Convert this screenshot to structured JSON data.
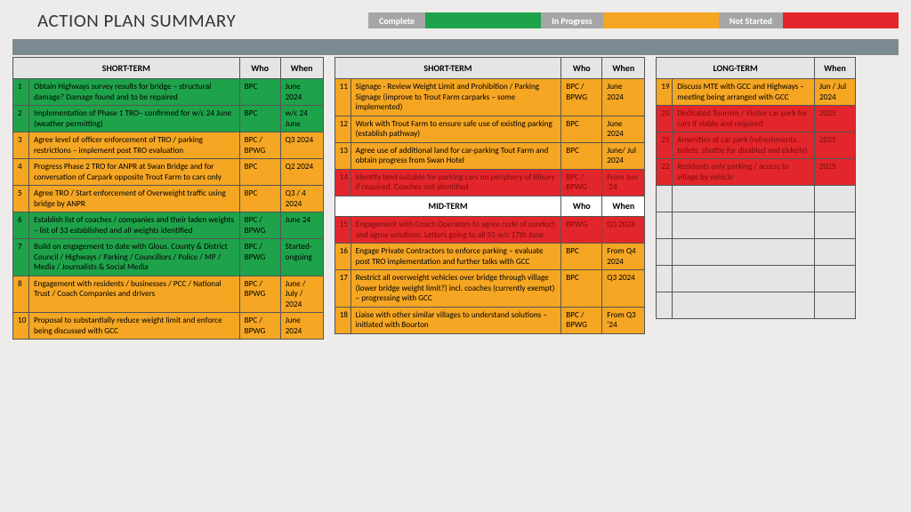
{
  "title": "ACTION PLAN SUMMARY",
  "legend": [
    {
      "label": "Complete",
      "color": "#1fa34a"
    },
    {
      "label": "In Progress",
      "color": "#f5a623"
    },
    {
      "label": "Not Started",
      "color": "#e3262b"
    }
  ],
  "headers": {
    "short": "SHORT-TERM",
    "mid": "MID-TERM",
    "long": "LONG-TERM",
    "who": "Who",
    "when": "When"
  },
  "col1": [
    {
      "n": "1",
      "desc": "Obtain Highways survey results for bridge – structural damage? Damage found and to be repaired",
      "who": "BPC",
      "when": "June 2024",
      "status": "green"
    },
    {
      "n": "2",
      "desc": "Implementation of Phase 1 TRO– confirmed for w/c 24 June (weather permitting)",
      "who": "BPC",
      "when": "w/c 24 June",
      "status": "green"
    },
    {
      "n": "3",
      "desc": "Agree level of officer enforcement  of TRO / parking restrictions – implement post TRO evaluation",
      "who": "BPC / BPWG",
      "when": "Q3 2024",
      "status": "amber"
    },
    {
      "n": "4",
      "desc": "Progress Phase 2 TRO for ANPR at Swan Bridge and for conversation of Carpark opposite Trout Farm to cars only",
      "who": "BPC",
      "when": "Q2 2024",
      "status": "amber"
    },
    {
      "n": "5",
      "desc": "Agree TRO / Start enforcement of Overweight traffic using bridge by ANPR",
      "who": "BPC",
      "when": "Q3 / 4 2024",
      "status": "amber"
    },
    {
      "n": "6",
      "desc": "Establish list of coaches / companies and their laden weights – list of 53 established and all weights identified",
      "who": "BPC / BPWG",
      "when": "June 24",
      "status": "green"
    },
    {
      "n": "7",
      "desc": "Build on engagement to date with Glous. County & District Council / Highways / Parking / Councillors / Police / MP / Media / Journalists & Social Media",
      "who": "BPC / BPWG",
      "when": "Started- ongoing",
      "status": "green"
    },
    {
      "n": "8",
      "desc": "Engagement with residents / businesses / PCC / National Trust / Coach Companies and drivers",
      "who": "BPC / BPWG",
      "when": "June / July / 2024",
      "status": "amber"
    },
    {
      "n": "10",
      "desc": "Proposal to substantially reduce weight limit and enforce being discussed with GCC",
      "who": "BPC / BPWG",
      "when": "June 2024",
      "status": "amber"
    }
  ],
  "col2_top": [
    {
      "n": "11",
      "desc": "Signage - Review Weight Limit and Prohibition / Parking Signage (improve to Trout Farm carparks – some implemented)",
      "who": "BPC / BPWG",
      "when": "June 2024",
      "status": "amber"
    },
    {
      "n": "12",
      "desc": "Work with Trout Farm to ensure safe use of existing parking (establish pathway)",
      "who": "BPC",
      "when": "June 2024",
      "status": "amber"
    },
    {
      "n": "13",
      "desc": "Agree use of additional land for car-parking Tout Farm and obtain progress from Swan Hotel",
      "who": "BPC",
      "when": "June/ Jul 2024",
      "status": "amber"
    },
    {
      "n": "14",
      "desc": "Identify land suitable for parking cars on periphery of Bibury if required. Coaches not identified",
      "who": "BPC / BPWG",
      "when": "From Jun '24",
      "status": "red"
    }
  ],
  "col2_mid": [
    {
      "n": "15",
      "desc": "Engagement with Coach Operators to agree code of conduct and agree solutions. Letters going to all 53 w/c 17th June",
      "who": "BPWG",
      "when": "Q3 2024",
      "status": "red"
    },
    {
      "n": "16",
      "desc": "Engage Private Contractors to enforce parking – evaluate post TRO implementation and further talks with GCC",
      "who": "BPC",
      "when": "From Q4 2024",
      "status": "amber"
    },
    {
      "n": "17",
      "desc": "Restrict all overweight vehicles over bridge through village (lower bridge weight limit?) incl. coaches (currently exempt) – progressing with GCC",
      "who": "BPC",
      "when": "Q3 2024",
      "status": "amber"
    },
    {
      "n": "18",
      "desc": "Liaise with other similar villages to understand solutions – initiated with Bourton",
      "who": "BPC / BPWG",
      "when": "From Q3 '24",
      "status": "amber"
    }
  ],
  "col3": [
    {
      "n": "19",
      "desc": "Discuss MTE with GCC and Highways – meeting being arranged with GCC",
      "who": "",
      "when": "Jun / Jul 2024",
      "status": "amber"
    },
    {
      "n": "20",
      "desc": "Dedicated Tourism / Visitor car park for cars if viable and required",
      "who": "",
      "when": "2025",
      "status": "red"
    },
    {
      "n": "21",
      "desc": "Amenities at car park (refreshments, toilets, shuttle for disabled and elderly)",
      "who": "",
      "when": "2025",
      "status": "red"
    },
    {
      "n": "22",
      "desc": "Residents only parking / access to village by vehicle",
      "who": "",
      "when": "2025",
      "status": "red"
    }
  ],
  "col3_empty_rows": 5,
  "col3_has_who": false
}
